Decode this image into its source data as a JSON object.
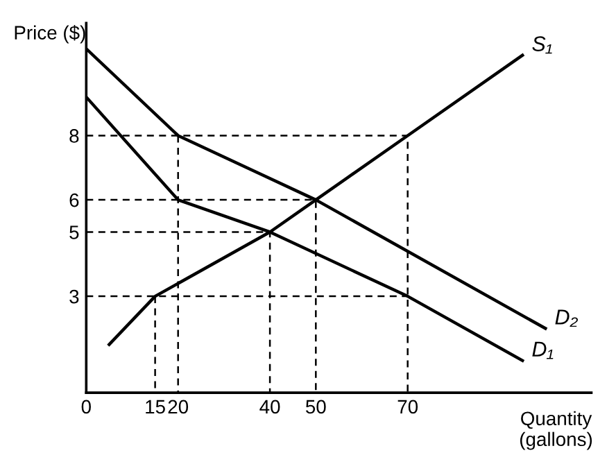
{
  "chart_data": {
    "type": "line",
    "xlabel": "Quantity\n(gallons)",
    "ylabel": "Price ($)",
    "xlim": [
      0,
      110
    ],
    "ylim": [
      0,
      11.5
    ],
    "xticks": [
      0,
      15,
      20,
      40,
      50,
      70
    ],
    "yticks": [
      3,
      5,
      6,
      8
    ],
    "grid": false,
    "legend": false,
    "marker": "none",
    "series": [
      {
        "name": "S₁",
        "color": "#000000",
        "line_style": "solid",
        "x": [
          5,
          15,
          40,
          50,
          70,
          95
        ],
        "values": [
          1.5,
          3,
          5,
          6,
          8,
          10.5
        ]
      },
      {
        "name": "D₁",
        "color": "#000000",
        "line_style": "solid",
        "x": [
          0,
          20,
          40,
          70,
          95
        ],
        "values": [
          9.2,
          6,
          5,
          3,
          1
        ]
      },
      {
        "name": "D₂",
        "color": "#000000",
        "line_style": "solid",
        "x": [
          0,
          20,
          50,
          100
        ],
        "values": [
          10.7,
          8,
          6,
          2
        ]
      },
      {
        "color": "#000000",
        "line_style": "dashed",
        "x": [
          0,
          70,
          70
        ],
        "values": [
          8,
          8,
          0
        ]
      },
      {
        "color": "#000000",
        "line_style": "dashed",
        "x": [
          20,
          20
        ],
        "values": [
          8,
          0
        ]
      },
      {
        "color": "#000000",
        "line_style": "dashed",
        "x": [
          0,
          50,
          50
        ],
        "values": [
          6,
          6,
          0
        ]
      },
      {
        "color": "#000000",
        "line_style": "dashed",
        "x": [
          0,
          40,
          40
        ],
        "values": [
          5,
          5,
          0
        ]
      },
      {
        "color": "#000000",
        "line_style": "dashed",
        "x": [
          0,
          70
        ],
        "values": [
          3,
          3
        ]
      },
      {
        "color": "#000000",
        "line_style": "dashed",
        "x": [
          15,
          15
        ],
        "values": [
          3,
          0
        ]
      }
    ]
  }
}
